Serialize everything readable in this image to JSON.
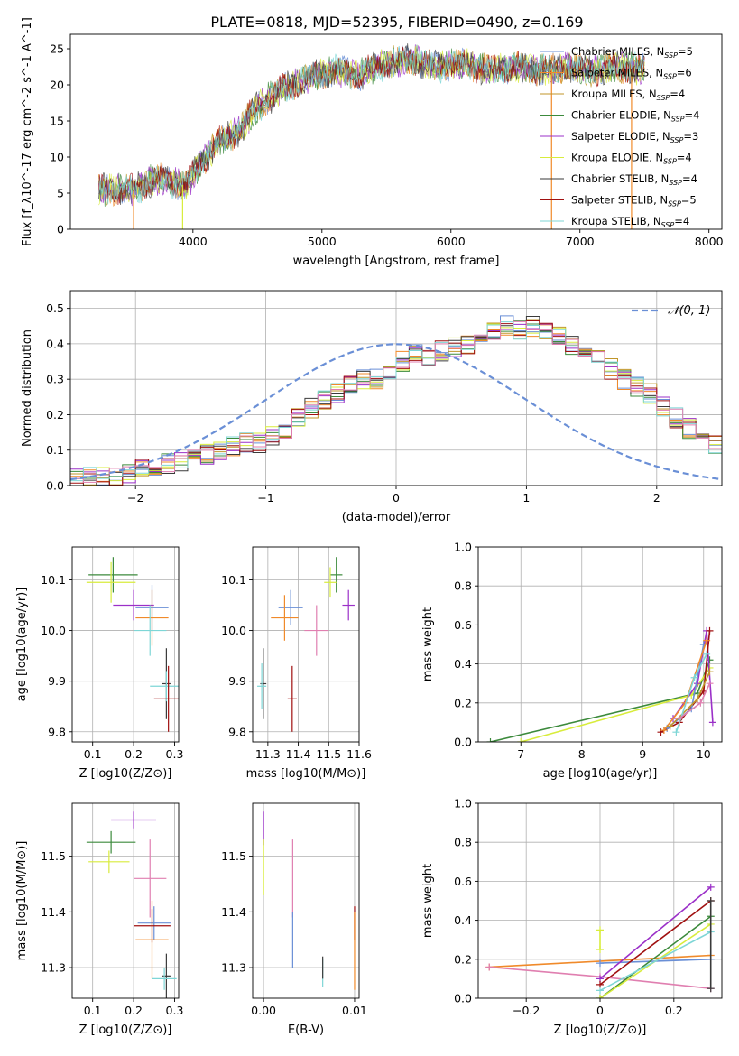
{
  "figure_title": "PLATE=0818, MJD=52395, FIBERID=0490, z=0.169",
  "colors": {
    "grid": "#b0b0b0",
    "series": [
      "#6a8fd6",
      "#f08a2a",
      "#c0962a",
      "#3c8a3c",
      "#9b30c8",
      "#d8ec3c",
      "#3a3a3a",
      "#a01010",
      "#7ed6d6"
    ],
    "normal_curve": "#6a8fd6",
    "pink": "#e07fb0"
  },
  "chart_data": [
    {
      "id": "spectrum",
      "type": "line",
      "title": "PLATE=0818, MJD=52395, FIBERID=0490, z=0.169",
      "xlabel": "wavelength [Angstrom, rest frame]",
      "ylabel": "Flux [f_λ10^-17 erg cm^-2 s^-1 A^-1]",
      "xlim": [
        3050,
        8100
      ],
      "ylim": [
        0,
        27
      ],
      "xticks": [
        4000,
        5000,
        6000,
        7000,
        8000
      ],
      "yticks": [
        0,
        5,
        10,
        15,
        20,
        25
      ],
      "grid": false,
      "legend_position": "upper-right",
      "series": [
        {
          "name": "Chabrier MILES, N_SSP=5"
        },
        {
          "name": "Salpeter MILES, N_SSP=6"
        },
        {
          "name": "Kroupa MILES, N_SSP=4"
        },
        {
          "name": "Chabrier ELODIE, N_SSP=4"
        },
        {
          "name": "Salpeter ELODIE, N_SSP=3"
        },
        {
          "name": "Kroupa ELODIE, N_SSP=4"
        },
        {
          "name": "Chabrier STELIB, N_SSP=4"
        },
        {
          "name": "Salpeter STELIB, N_SSP=5"
        },
        {
          "name": "Kroupa STELIB, N_SSP=4"
        }
      ],
      "envelope": {
        "x": [
          3270,
          3400,
          3550,
          3700,
          3850,
          3950,
          4050,
          4200,
          4350,
          4500,
          4700,
          4900,
          5100,
          5300,
          5500,
          5700,
          5900,
          6100,
          6300,
          6500,
          6700,
          6900,
          7100,
          7300,
          7500
        ],
        "y": [
          5.5,
          5.6,
          5.5,
          7.0,
          6.5,
          6.0,
          9.0,
          12.0,
          13.5,
          17.0,
          19.5,
          21.0,
          22.0,
          21.5,
          23.0,
          23.5,
          22.5,
          23.0,
          22.0,
          22.5,
          22.0,
          22.5,
          22.0,
          22.5,
          22.0
        ]
      }
    },
    {
      "id": "residuals",
      "type": "line",
      "xlabel": "(data-model)/error",
      "ylabel": "Normed distribution",
      "xlim": [
        -2.5,
        2.5
      ],
      "ylim": [
        0,
        0.55
      ],
      "xticks": [
        -2,
        -1,
        0,
        1,
        2
      ],
      "yticks": [
        0.0,
        0.1,
        0.2,
        0.3,
        0.4,
        0.5
      ],
      "grid": true,
      "legend_position": "upper-right",
      "series": [
        {
          "name": "𝒩(0, 1)",
          "style": "dashed"
        }
      ],
      "histogram": {
        "bin_width": 0.1,
        "x_start": -2.5,
        "densities": [
          0.02,
          0.022,
          0.025,
          0.03,
          0.035,
          0.045,
          0.055,
          0.062,
          0.07,
          0.08,
          0.09,
          0.1,
          0.11,
          0.12,
          0.12,
          0.14,
          0.16,
          0.19,
          0.22,
          0.24,
          0.26,
          0.29,
          0.3,
          0.3,
          0.33,
          0.35,
          0.37,
          0.36,
          0.38,
          0.39,
          0.4,
          0.42,
          0.44,
          0.45,
          0.44,
          0.45,
          0.43,
          0.42,
          0.4,
          0.37,
          0.36,
          0.33,
          0.3,
          0.28,
          0.26,
          0.22,
          0.19,
          0.16,
          0.14,
          0.12
        ]
      }
    },
    {
      "id": "age-vs-Z",
      "type": "scatter",
      "xlabel": "Z [log10(Z/Z⊙)]",
      "ylabel": "age  [log10(age/yr)]",
      "xlim": [
        0.05,
        0.31
      ],
      "ylim": [
        9.78,
        10.165
      ],
      "xticks": [
        0.1,
        0.2,
        0.3
      ],
      "yticks": [
        9.8,
        9.9,
        10.0,
        10.1
      ],
      "grid": true,
      "points": [
        {
          "x": 0.15,
          "y": 10.11,
          "xerr": 0.06,
          "yerr": 0.035,
          "c": 3
        },
        {
          "x": 0.145,
          "y": 10.095,
          "xerr": 0.06,
          "yerr": 0.04,
          "c": 5
        },
        {
          "x": 0.2,
          "y": 10.05,
          "xerr": 0.05,
          "yerr": 0.03,
          "c": 4
        },
        {
          "x": 0.245,
          "y": 10.045,
          "xerr": 0.04,
          "yerr": 0.045,
          "c": 0
        },
        {
          "x": 0.245,
          "y": 10.025,
          "xerr": 0.04,
          "yerr": 0.055,
          "c": 1
        },
        {
          "x": 0.24,
          "y": 10.0,
          "xerr": 0.04,
          "yerr": 0.05,
          "c": 8
        },
        {
          "x": 0.28,
          "y": 9.895,
          "xerr": 0.01,
          "yerr": 0.07,
          "c": 6
        },
        {
          "x": 0.28,
          "y": 9.89,
          "xerr": 0.04,
          "yerr": 0.03,
          "c": 8
        },
        {
          "x": 0.285,
          "y": 9.865,
          "xerr": 0.035,
          "yerr": 0.065,
          "c": 7
        }
      ]
    },
    {
      "id": "age-vs-mass",
      "type": "scatter",
      "xlabel": "mass [log10(M/M⊙)]",
      "ylabel": "",
      "xlim": [
        11.25,
        11.6
      ],
      "ylim": [
        9.78,
        10.165
      ],
      "xticks": [
        11.3,
        11.4,
        11.5,
        11.6
      ],
      "yticks": [
        9.8,
        9.9,
        10.0,
        10.1
      ],
      "grid": true,
      "points": [
        {
          "x": 11.525,
          "y": 10.11,
          "xerr": 0.02,
          "yerr": 0.035,
          "c": 3
        },
        {
          "x": 11.505,
          "y": 10.095,
          "xerr": 0.02,
          "yerr": 0.03,
          "c": 5
        },
        {
          "x": 11.565,
          "y": 10.05,
          "xerr": 0.02,
          "yerr": 0.03,
          "c": 4
        },
        {
          "x": 11.375,
          "y": 10.045,
          "xerr": 0.04,
          "yerr": 0.035,
          "c": 0
        },
        {
          "x": 11.355,
          "y": 10.025,
          "xerr": 0.045,
          "yerr": 0.045,
          "c": 1
        },
        {
          "x": 11.46,
          "y": 10.0,
          "xerr": 0.04,
          "yerr": 0.05,
          "c": 9
        },
        {
          "x": 11.285,
          "y": 9.895,
          "xerr": 0.01,
          "yerr": 0.07,
          "c": 6
        },
        {
          "x": 11.28,
          "y": 9.89,
          "xerr": 0.015,
          "yerr": 0.045,
          "c": 8
        },
        {
          "x": 11.38,
          "y": 9.865,
          "xerr": 0.015,
          "yerr": 0.065,
          "c": 7
        }
      ]
    },
    {
      "id": "mass-weight-vs-age",
      "type": "line",
      "xlabel": "age  [log10(age/yr)]",
      "ylabel": "mass weight",
      "xlim": [
        6.3,
        10.3
      ],
      "ylim": [
        0,
        1.0
      ],
      "xticks": [
        7,
        8,
        9,
        10
      ],
      "yticks": [
        0.0,
        0.2,
        0.4,
        0.6,
        0.8,
        1.0
      ],
      "grid": true,
      "series": [
        {
          "c": 3,
          "x": [
            6.5,
            9.9,
            10.1
          ],
          "y": [
            0.0,
            0.25,
            0.42
          ]
        },
        {
          "c": 5,
          "x": [
            7.0,
            9.8,
            10.1
          ],
          "y": [
            0.0,
            0.24,
            0.38
          ]
        },
        {
          "c": 4,
          "x": [
            9.5,
            9.9,
            10.05,
            10.15
          ],
          "y": [
            0.12,
            0.3,
            0.57,
            0.1
          ]
        },
        {
          "c": 7,
          "x": [
            9.3,
            9.6,
            10.0,
            10.1
          ],
          "y": [
            0.05,
            0.1,
            0.26,
            0.57
          ]
        },
        {
          "c": 0,
          "x": [
            9.4,
            9.8,
            10.0
          ],
          "y": [
            0.07,
            0.17,
            0.5
          ]
        },
        {
          "c": 1,
          "x": [
            9.35,
            9.7,
            10.05
          ],
          "y": [
            0.06,
            0.2,
            0.52
          ]
        },
        {
          "c": 2,
          "x": [
            9.45,
            9.9,
            10.1
          ],
          "y": [
            0.08,
            0.22,
            0.36
          ]
        },
        {
          "c": 8,
          "x": [
            9.55,
            9.85,
            10.05
          ],
          "y": [
            0.05,
            0.33,
            0.45
          ]
        },
        {
          "c": 9,
          "x": [
            9.6,
            9.95,
            10.1
          ],
          "y": [
            0.12,
            0.2,
            0.3
          ]
        }
      ]
    },
    {
      "id": "mass-vs-Z",
      "type": "scatter",
      "xlabel": "Z [log10(Z/Z⊙)]",
      "ylabel": "mass [log10(M/M⊙)]",
      "xlim": [
        0.05,
        0.31
      ],
      "ylim": [
        11.245,
        11.595
      ],
      "xticks": [
        0.1,
        0.2,
        0.3
      ],
      "yticks": [
        11.3,
        11.4,
        11.5
      ],
      "grid": true,
      "points": [
        {
          "x": 0.2,
          "y": 11.565,
          "xerr": 0.055,
          "yerr": 0.015,
          "c": 4
        },
        {
          "x": 0.145,
          "y": 11.525,
          "xerr": 0.06,
          "yerr": 0.02,
          "c": 3
        },
        {
          "x": 0.14,
          "y": 11.49,
          "xerr": 0.05,
          "yerr": 0.02,
          "c": 5
        },
        {
          "x": 0.24,
          "y": 11.46,
          "xerr": 0.04,
          "yerr": 0.07,
          "c": 9
        },
        {
          "x": 0.25,
          "y": 11.38,
          "xerr": 0.04,
          "yerr": 0.03,
          "c": 0
        },
        {
          "x": 0.245,
          "y": 11.375,
          "xerr": 0.045,
          "yerr": 0.03,
          "c": 7
        },
        {
          "x": 0.245,
          "y": 11.35,
          "xerr": 0.04,
          "yerr": 0.07,
          "c": 1
        },
        {
          "x": 0.28,
          "y": 11.285,
          "xerr": 0.01,
          "yerr": 0.04,
          "c": 6
        },
        {
          "x": 0.275,
          "y": 11.28,
          "xerr": 0.03,
          "yerr": 0.02,
          "c": 8
        }
      ]
    },
    {
      "id": "mass-vs-ebv",
      "type": "scatter",
      "xlabel": "E(B-V)",
      "ylabel": "",
      "xlim": [
        -0.0012,
        0.0105
      ],
      "ylim": [
        11.245,
        11.595
      ],
      "xticks": [
        0.0,
        0.01
      ],
      "yticks": [
        11.3,
        11.4,
        11.5
      ],
      "grid": true,
      "points": [
        {
          "x": 0.0,
          "y": 11.55,
          "xerr": 0,
          "yerr": 0.03,
          "c": 4
        },
        {
          "x": 0.0,
          "y": 11.48,
          "xerr": 0,
          "yerr": 0.05,
          "c": 5
        },
        {
          "x": 0.0032,
          "y": 11.46,
          "xerr": 0,
          "yerr": 0.07,
          "c": 9
        },
        {
          "x": 0.0032,
          "y": 11.35,
          "xerr": 0,
          "yerr": 0.05,
          "c": 0
        },
        {
          "x": 0.0065,
          "y": 11.29,
          "xerr": 0,
          "yerr": 0.025,
          "c": 8
        },
        {
          "x": 0.0065,
          "y": 11.3,
          "xerr": 0,
          "yerr": 0.02,
          "c": 6
        },
        {
          "x": 0.01,
          "y": 11.38,
          "xerr": 0,
          "yerr": 0.03,
          "c": 7
        },
        {
          "x": 0.01,
          "y": 11.33,
          "xerr": 0,
          "yerr": 0.07,
          "c": 1
        }
      ]
    },
    {
      "id": "mass-weight-vs-Z",
      "type": "line",
      "xlabel": "Z [log10(Z/Z⊙)]",
      "ylabel": "mass weight",
      "xlim": [
        -0.33,
        0.33
      ],
      "ylim": [
        0,
        1.0
      ],
      "xticks": [
        -0.2,
        0.0,
        0.2
      ],
      "yticks": [
        0.0,
        0.2,
        0.4,
        0.6,
        0.8,
        1.0
      ],
      "grid": true,
      "series": [
        {
          "c": 1,
          "x": [
            -0.3,
            0.3
          ],
          "y": [
            0.16,
            0.22
          ]
        },
        {
          "c": 9,
          "x": [
            -0.3,
            0.0,
            0.3
          ],
          "y": [
            0.16,
            0.11,
            0.05
          ]
        },
        {
          "c": 0,
          "x": [
            0.0,
            0.3
          ],
          "y": [
            0.18,
            0.2
          ]
        },
        {
          "c": 4,
          "x": [
            0.0,
            0.3
          ],
          "y": [
            0.1,
            0.57
          ]
        },
        {
          "c": 7,
          "x": [
            0.0,
            0.3
          ],
          "y": [
            0.07,
            0.5
          ]
        },
        {
          "c": 3,
          "x": [
            0.0,
            0.3
          ],
          "y": [
            0.0,
            0.42
          ]
        },
        {
          "c": 5,
          "x": [
            0.0,
            0.3
          ],
          "y": [
            0.0,
            0.38
          ]
        },
        {
          "c": 8,
          "x": [
            0.0,
            0.3
          ],
          "y": [
            0.04,
            0.34
          ]
        },
        {
          "c": 5,
          "x": [
            0.0,
            0.0
          ],
          "y": [
            0.25,
            0.35
          ]
        },
        {
          "c": 6,
          "x": [
            0.3,
            0.3
          ],
          "y": [
            0.05,
            0.5
          ]
        }
      ]
    }
  ]
}
